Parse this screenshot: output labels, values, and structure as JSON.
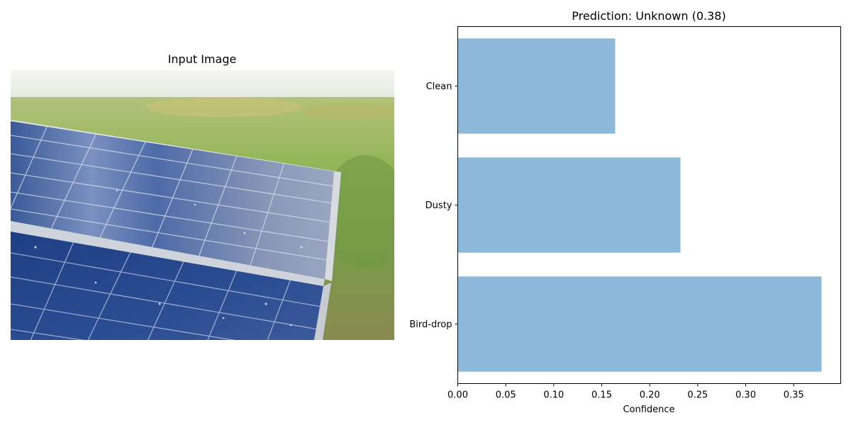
{
  "left_panel": {
    "title": "Input Image",
    "image_description": "solar-panel-photo"
  },
  "chart_data": {
    "type": "bar",
    "orientation": "horizontal",
    "title": "Prediction: Unknown (0.38)",
    "xlabel": "Confidence",
    "ylabel": "",
    "categories": [
      "Bird-drop",
      "Dusty",
      "Clean"
    ],
    "values": [
      0.379,
      0.232,
      0.164
    ],
    "xlim": [
      0,
      0.399
    ],
    "xticks": [
      "0.00",
      "0.05",
      "0.10",
      "0.15",
      "0.20",
      "0.25",
      "0.30",
      "0.35"
    ],
    "bar_color": "#8db8d9",
    "grid": false
  }
}
